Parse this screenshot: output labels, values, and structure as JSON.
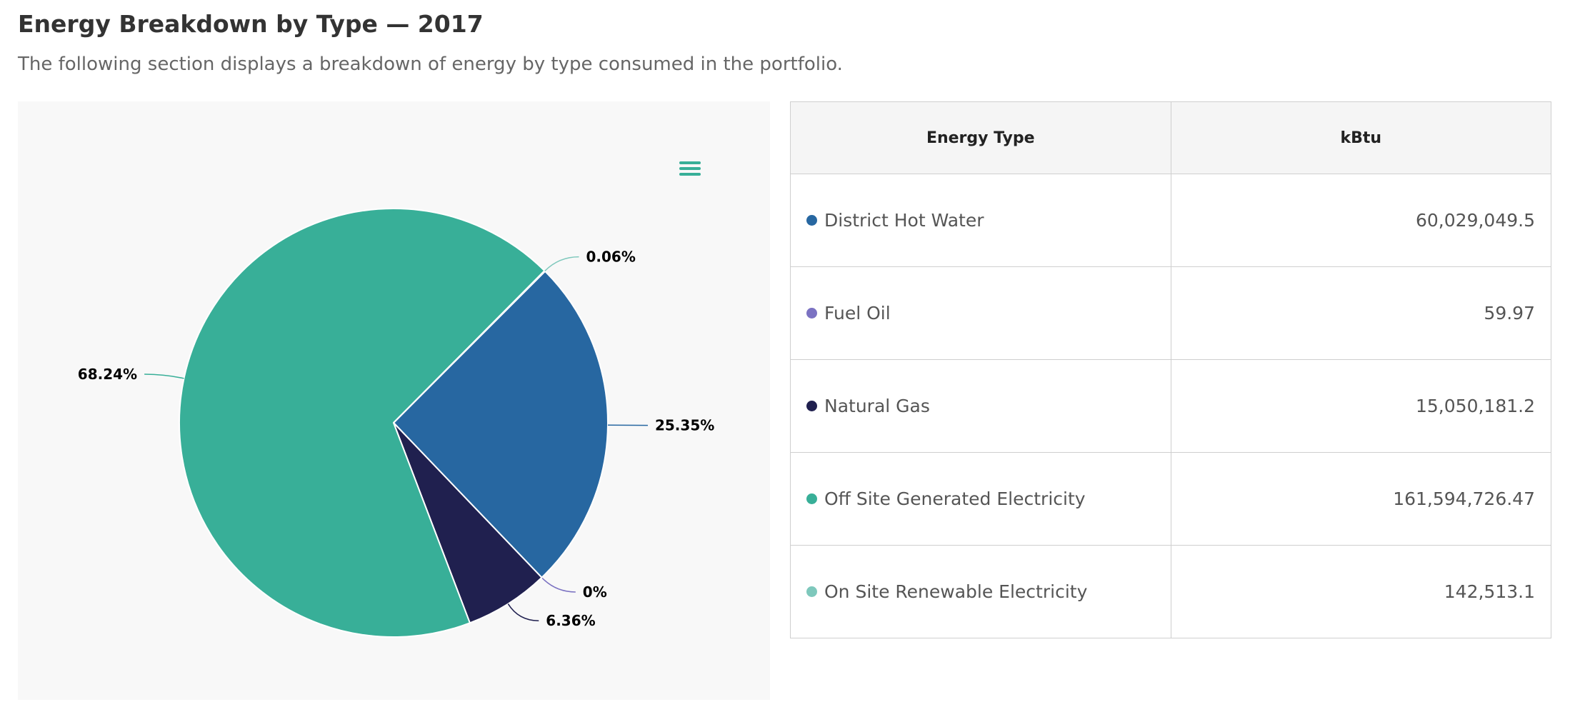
{
  "header": {
    "title": "Energy Breakdown by Type — 2017",
    "subtitle": "The following section displays a breakdown of energy by type consumed in the portfolio."
  },
  "chart_menu": {
    "icon": "hamburger-menu-icon",
    "color": "#38af98"
  },
  "table": {
    "columns": [
      "Energy Type",
      "kBtu"
    ],
    "rows": [
      {
        "type": "District Hot Water",
        "kbtu": "60,029,049.5",
        "color": "#2767a1"
      },
      {
        "type": "Fuel Oil",
        "kbtu": "59.97",
        "color": "#7b72c2"
      },
      {
        "type": "Natural Gas",
        "kbtu": "15,050,181.2",
        "color": "#20204f"
      },
      {
        "type": "Off Site Generated Electricity",
        "kbtu": "161,594,726.47",
        "color": "#38af98"
      },
      {
        "type": "On Site Renewable Electricity",
        "kbtu": "142,513.1",
        "color": "#7ec8bc"
      }
    ]
  },
  "chart_data": {
    "type": "pie",
    "start_angle_deg": 45,
    "slices": [
      {
        "name": "District Hot Water",
        "value": 60029049.5,
        "label": "25.35%",
        "color": "#2767a1"
      },
      {
        "name": "Fuel Oil",
        "value": 59.97,
        "label": "0%",
        "color": "#7b72c2"
      },
      {
        "name": "Natural Gas",
        "value": 15050181.2,
        "label": "6.36%",
        "color": "#20204f"
      },
      {
        "name": "Off Site Generated Electricity",
        "value": 161594726.47,
        "label": "68.24%",
        "color": "#38af98"
      },
      {
        "name": "On Site Renewable Electricity",
        "value": 142513.1,
        "label": "0.06%",
        "color": "#7ec8bc"
      }
    ]
  }
}
